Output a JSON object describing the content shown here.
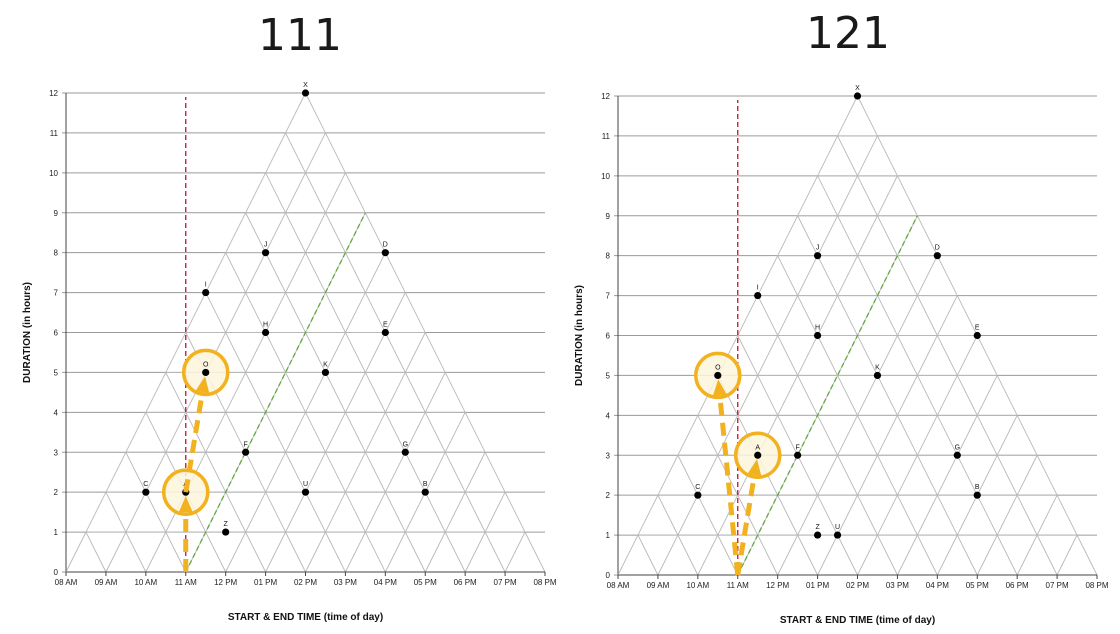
{
  "colors": {
    "grid": "#9a9a9a",
    "tri": "#b8b8b8",
    "point": "#000000",
    "red_line": "#c8102e",
    "green_line": "#5fa83c",
    "highlight": "#f2b21f",
    "highlight_fill": "#fdf5da"
  },
  "chart_data": [
    {
      "type": "scatter",
      "title": "111",
      "xlabel": "START & END TIME (time of day)",
      "ylabel": "DURATION (in hours)",
      "xlim": [
        8,
        20
      ],
      "ylim": [
        0,
        12
      ],
      "x_ticks": [
        8,
        9,
        10,
        11,
        12,
        13,
        14,
        15,
        16,
        17,
        18,
        19,
        20
      ],
      "x_tick_labels": [
        "08 AM",
        "09 AM",
        "10 AM",
        "11 AM",
        "12 PM",
        "01 PM",
        "02 PM",
        "03 PM",
        "04 PM",
        "05 PM",
        "06 PM",
        "07 PM",
        "08 PM"
      ],
      "y_ticks": [
        0,
        1,
        2,
        3,
        4,
        5,
        6,
        7,
        8,
        9,
        10,
        11,
        12
      ],
      "grid": true,
      "points": [
        {
          "label": "X",
          "x": 14,
          "y": 12
        },
        {
          "label": "J",
          "x": 13,
          "y": 8
        },
        {
          "label": "D",
          "x": 16,
          "y": 8
        },
        {
          "label": "I",
          "x": 11.5,
          "y": 7
        },
        {
          "label": "H",
          "x": 13,
          "y": 6
        },
        {
          "label": "E",
          "x": 16,
          "y": 6
        },
        {
          "label": "O",
          "x": 11.5,
          "y": 5
        },
        {
          "label": "K",
          "x": 14.5,
          "y": 5
        },
        {
          "label": "F",
          "x": 12.5,
          "y": 3
        },
        {
          "label": "G",
          "x": 16.5,
          "y": 3
        },
        {
          "label": "C",
          "x": 10,
          "y": 2
        },
        {
          "label": "A",
          "x": 11,
          "y": 2
        },
        {
          "label": "U",
          "x": 14,
          "y": 2
        },
        {
          "label": "B",
          "x": 17,
          "y": 2
        },
        {
          "label": "Z",
          "x": 12,
          "y": 1
        }
      ],
      "red_line_x": 11,
      "green_line": {
        "from": [
          11,
          0
        ],
        "to": [
          15.5,
          9
        ]
      },
      "highlights": [
        "A",
        "O"
      ],
      "arrows": [
        {
          "from": [
            11,
            0
          ],
          "to": [
            11,
            2
          ]
        },
        {
          "from": [
            11,
            2
          ],
          "to": [
            11.5,
            5
          ]
        }
      ]
    },
    {
      "type": "scatter",
      "title": "121",
      "xlabel": "START & END TIME (time of day)",
      "ylabel": "DURATION (in hours)",
      "xlim": [
        8,
        20
      ],
      "ylim": [
        0,
        12
      ],
      "x_ticks": [
        8,
        9,
        10,
        11,
        12,
        13,
        14,
        15,
        16,
        17,
        18,
        19,
        20
      ],
      "x_tick_labels": [
        "08 AM",
        "09 AM",
        "10 AM",
        "11 AM",
        "12 PM",
        "01 PM",
        "02 PM",
        "03 PM",
        "04 PM",
        "05 PM",
        "06 PM",
        "07 PM",
        "08 PM"
      ],
      "y_ticks": [
        0,
        1,
        2,
        3,
        4,
        5,
        6,
        7,
        8,
        9,
        10,
        11,
        12
      ],
      "grid": true,
      "points": [
        {
          "label": "X",
          "x": 14,
          "y": 12
        },
        {
          "label": "J",
          "x": 13,
          "y": 8
        },
        {
          "label": "D",
          "x": 16,
          "y": 8
        },
        {
          "label": "I",
          "x": 11.5,
          "y": 7
        },
        {
          "label": "H",
          "x": 13,
          "y": 6
        },
        {
          "label": "E",
          "x": 17,
          "y": 6
        },
        {
          "label": "O",
          "x": 10.5,
          "y": 5
        },
        {
          "label": "K",
          "x": 14.5,
          "y": 5
        },
        {
          "label": "A",
          "x": 11.5,
          "y": 3
        },
        {
          "label": "F",
          "x": 12.5,
          "y": 3
        },
        {
          "label": "G",
          "x": 16.5,
          "y": 3
        },
        {
          "label": "C",
          "x": 10,
          "y": 2
        },
        {
          "label": "B",
          "x": 17,
          "y": 2
        },
        {
          "label": "Z",
          "x": 13,
          "y": 1
        },
        {
          "label": "U",
          "x": 13.5,
          "y": 1
        }
      ],
      "red_line_x": 11,
      "green_line": {
        "from": [
          11,
          0
        ],
        "to": [
          15.5,
          9
        ]
      },
      "highlights": [
        "A",
        "O"
      ],
      "arrows": [
        {
          "from": [
            11,
            0
          ],
          "to": [
            11.5,
            3
          ]
        },
        {
          "from": [
            11,
            0
          ],
          "to": [
            10.5,
            5
          ]
        }
      ]
    }
  ]
}
